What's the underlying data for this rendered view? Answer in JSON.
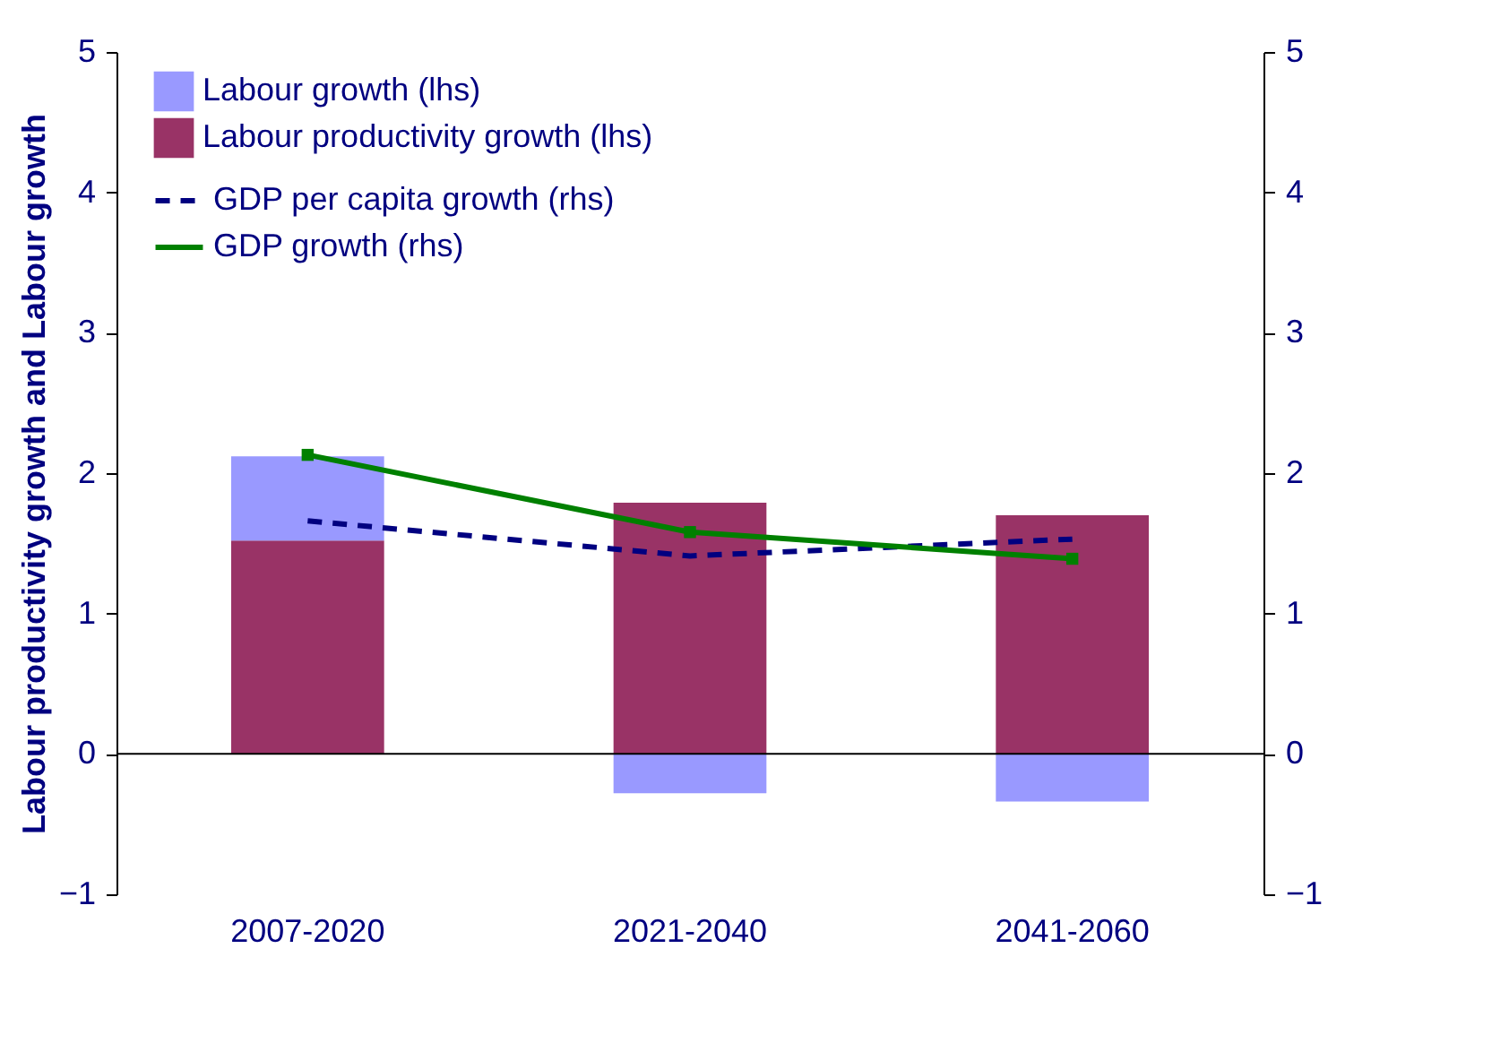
{
  "chart_data": {
    "type": "bar",
    "stacked": true,
    "categories": [
      "2007-2020",
      "2021-2040",
      "2041-2060"
    ],
    "ylabel": "Labour productivity growth and Labour growth",
    "ylim": [
      -1,
      5
    ],
    "yticks": [
      -1,
      0,
      1,
      2,
      3,
      4,
      5
    ],
    "y2lim": [
      -1,
      5
    ],
    "y2ticks": [
      -1,
      0,
      1,
      2,
      3,
      4,
      5
    ],
    "legend": "top left",
    "grid": false,
    "ref_lines": [
      {
        "axis": "y",
        "value": 0,
        "color": "#000000"
      }
    ],
    "series": [
      {
        "name": "Labour productivity growth (lhs)",
        "color": "#993366",
        "values": [
          1.52,
          1.79,
          1.7
        ]
      },
      {
        "name": "Labour growth (lhs)",
        "color": "#9999ff",
        "values": [
          0.6,
          -0.28,
          -0.34
        ]
      },
      {
        "name": "GDP per capita growth (rhs)",
        "type": "line",
        "axis": "y2",
        "color": "#000080",
        "line_style": "dashed",
        "marker": "none",
        "values": [
          1.66,
          1.41,
          1.53
        ]
      },
      {
        "name": "GDP growth (rhs)",
        "type": "line",
        "axis": "y2",
        "color": "#008000",
        "line_style": "solid",
        "marker": "square",
        "values": [
          2.13,
          1.58,
          1.39
        ]
      }
    ]
  }
}
